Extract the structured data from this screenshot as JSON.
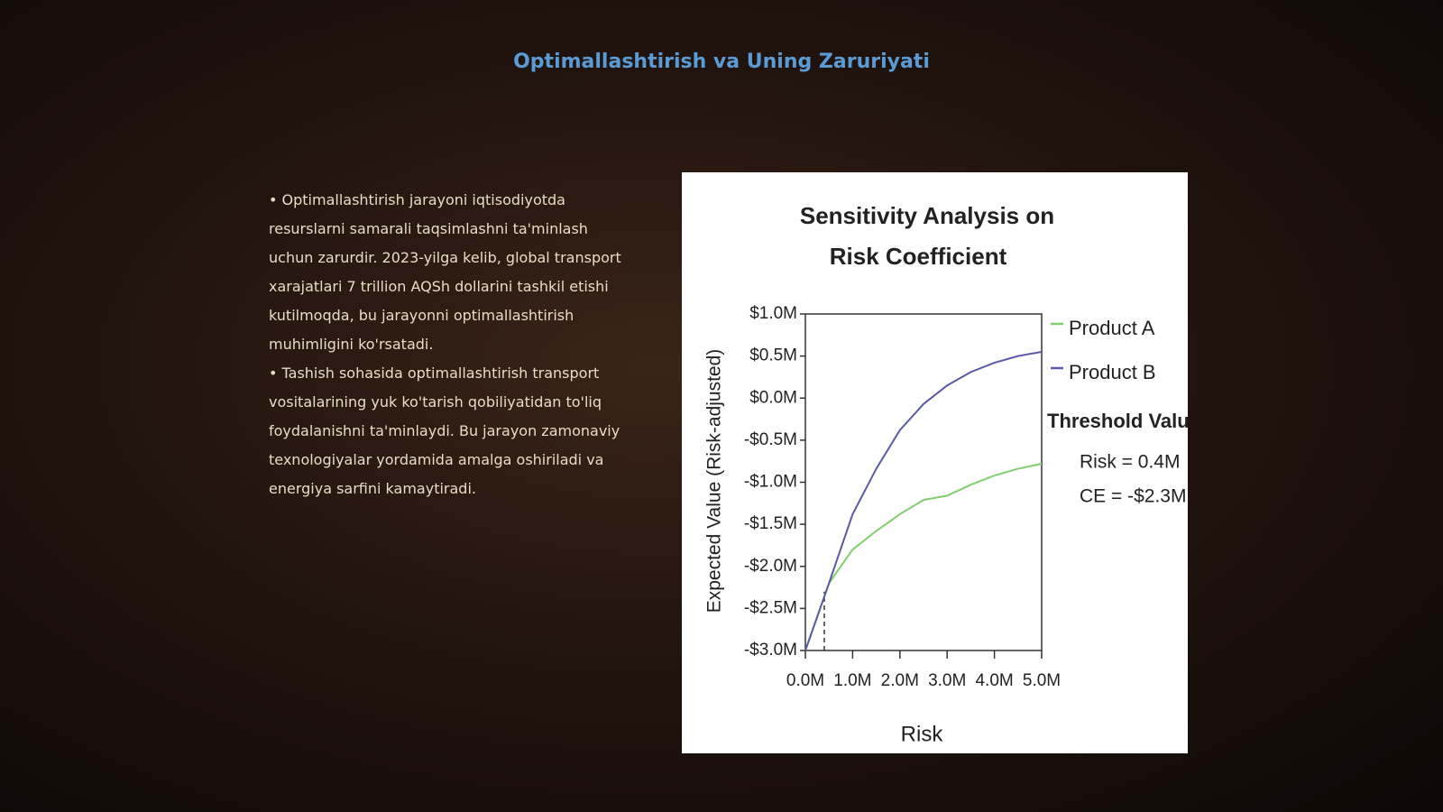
{
  "slide": {
    "title": "Optimallashtirish va Uning Zaruriyati",
    "bullets": [
      "• Optimallashtirish jarayoni iqtisodiyotda resurslarni samarali taqsimlashni ta'minlash uchun zarurdir. 2023-yilga kelib, global transport xarajatlari 7 trillion AQSh dollarini tashkil etishi kutilmoqda, bu jarayonni optimallashtirish muhimligini ko'rsatadi.",
      "• Tashish sohasida optimallashtirish transport vositalarining yuk ko'tarish qobiliyatidan to'liq foydalanishni ta'minlaydi. Bu jarayon zamonaviy texnologiyalar yordamida amalga oshiriladi va energiya sarfini kamaytiradi."
    ]
  },
  "chart_data": {
    "type": "line",
    "title": "Sensitivity Analysis on Risk Coefficient",
    "title_lines": [
      "Sensitivity Analysis on",
      "Risk Coefficient"
    ],
    "x_label": "Risk",
    "y_label": "Expected Value (Risk-adjusted)",
    "x": [
      0,
      500000,
      1000000,
      1500000,
      2000000,
      2500000,
      3000000,
      3500000,
      4000000,
      4500000,
      5000000
    ],
    "series": [
      {
        "name": "Product A",
        "color": "#7fcf6f",
        "values": [
          -3000000,
          -2200000,
          -1800000,
          -1580000,
          -1380000,
          -1210000,
          -1160000,
          -1030000,
          -920000,
          -840000,
          -780000
        ]
      },
      {
        "name": "Product B",
        "color": "#5a5aa8",
        "values": [
          -3000000,
          -2200000,
          -1380000,
          -840000,
          -380000,
          -70000,
          150000,
          310000,
          420000,
          500000,
          550000
        ]
      }
    ],
    "xlim": [
      0,
      5000000
    ],
    "ylim": [
      -3000000,
      1000000
    ],
    "xticks": [
      {
        "value": 0,
        "label": "0.0M"
      },
      {
        "value": 1000000,
        "label": "1.0M"
      },
      {
        "value": 2000000,
        "label": "2.0M"
      },
      {
        "value": 3000000,
        "label": "3.0M"
      },
      {
        "value": 4000000,
        "label": "4.0M"
      },
      {
        "value": 5000000,
        "label": "5.0M"
      }
    ],
    "yticks": [
      {
        "value": 1000000,
        "label": "$1.0M"
      },
      {
        "value": 500000,
        "label": "$0.5M"
      },
      {
        "value": 0,
        "label": "$0.0M"
      },
      {
        "value": -500000,
        "label": "-$0.5M"
      },
      {
        "value": -1000000,
        "label": "-$1.0M"
      },
      {
        "value": -1500000,
        "label": "-$1.5M"
      },
      {
        "value": -2000000,
        "label": "-$2.0M"
      },
      {
        "value": -2500000,
        "label": "-$2.5M"
      },
      {
        "value": -3000000,
        "label": "-$3.0M"
      }
    ],
    "threshold": {
      "title": "Threshold Values:",
      "risk": 400000,
      "risk_label": "Risk = 0.4M",
      "ce": -2300000,
      "ce_label": "CE = -$2.3M"
    },
    "legend": "right"
  }
}
